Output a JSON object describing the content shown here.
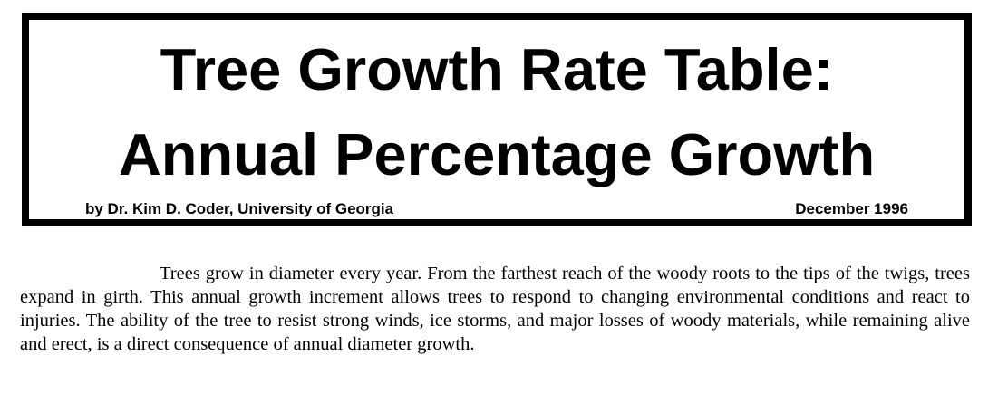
{
  "header": {
    "title_line1": "Tree Growth Rate Table:",
    "title_line2": "Annual Percentage Growth",
    "byline": "by Dr. Kim D. Coder, University of Georgia",
    "date": "December  1996"
  },
  "body": {
    "paragraph1": "Trees grow in diameter every year.  From the farthest reach of the woody roots to the tips of the twigs, trees expand in girth. This annual growth increment allows trees to respond to changing environmental conditions and react to injuries. The ability of the tree to resist strong winds, ice storms, and major losses of woody materials, while remaining alive and erect, is a direct consequence of annual diameter growth."
  }
}
